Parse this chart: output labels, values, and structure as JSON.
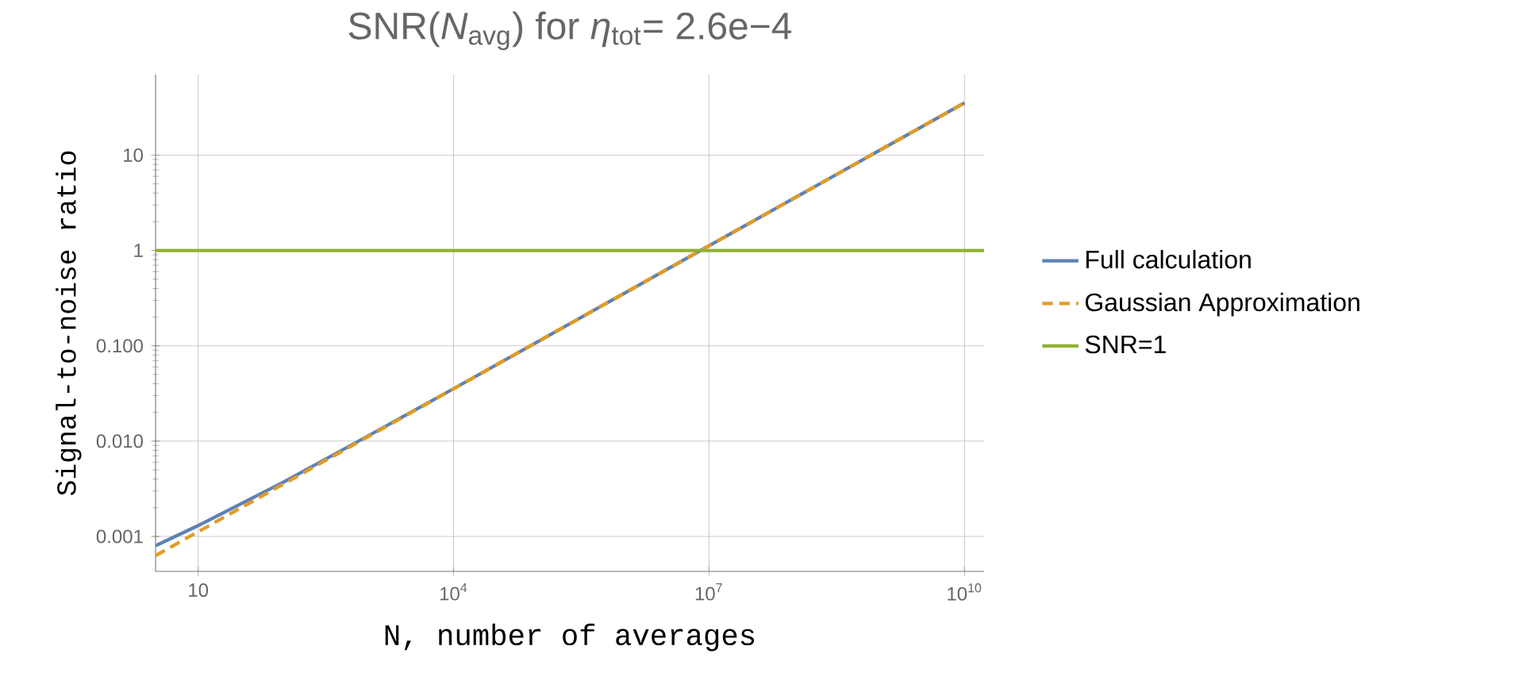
{
  "chart_data": {
    "type": "line",
    "title": "SNR(*N*$_{avg}$) for *η*$_{tot}$= 2.6e−4",
    "xlabel": "N, number of averages",
    "ylabel": "Signal-to-noise ratio",
    "log": "xy",
    "grid": true,
    "legend": "right",
    "marker": "none",
    "xlim": [
      3.16,
      17000000000
    ],
    "ylim": [
      0.00043,
      70
    ],
    "xticks": [
      10,
      {
        "value": 10000,
        "label": "10$^{4}$"
      },
      {
        "value": 10000000,
        "label": "10$^{7}$"
      },
      {
        "value": 10000000000,
        "label": "10$^{10}$"
      }
    ],
    "yticks": [
      {
        "value": 0.001,
        "label": "0.001"
      },
      {
        "value": 0.01,
        "label": "0.010"
      },
      {
        "value": 0.1,
        "label": "0.100"
      },
      1,
      10
    ],
    "series": [
      {
        "name": "Full calculation",
        "color": "#5e81b5",
        "line_style": "solid",
        "x": [
          3.16,
          10,
          100,
          1000,
          10000,
          100000,
          1000000,
          10000000,
          100000000,
          1000000000,
          10000000000
        ],
        "values": [
          0.0008,
          0.0013,
          0.0037,
          0.0114,
          0.0355,
          0.112,
          0.354,
          1.12,
          3.54,
          11.2,
          35.4
        ]
      },
      {
        "name": "Gaussian Approximation",
        "color": "#e19c24",
        "line_style": "dashed",
        "x": [
          3.16,
          10,
          100,
          1000,
          10000,
          100000,
          1000000,
          10000000,
          100000000,
          1000000000,
          10000000000
        ],
        "values": [
          0.00063,
          0.00112,
          0.00354,
          0.0112,
          0.0354,
          0.112,
          0.354,
          1.12,
          3.54,
          11.2,
          35.4
        ]
      },
      {
        "name": "SNR=1",
        "color": "#8fb032",
        "line_style": "solid",
        "x": [
          3.16,
          17000000000
        ],
        "values": [
          1,
          1
        ]
      }
    ]
  }
}
